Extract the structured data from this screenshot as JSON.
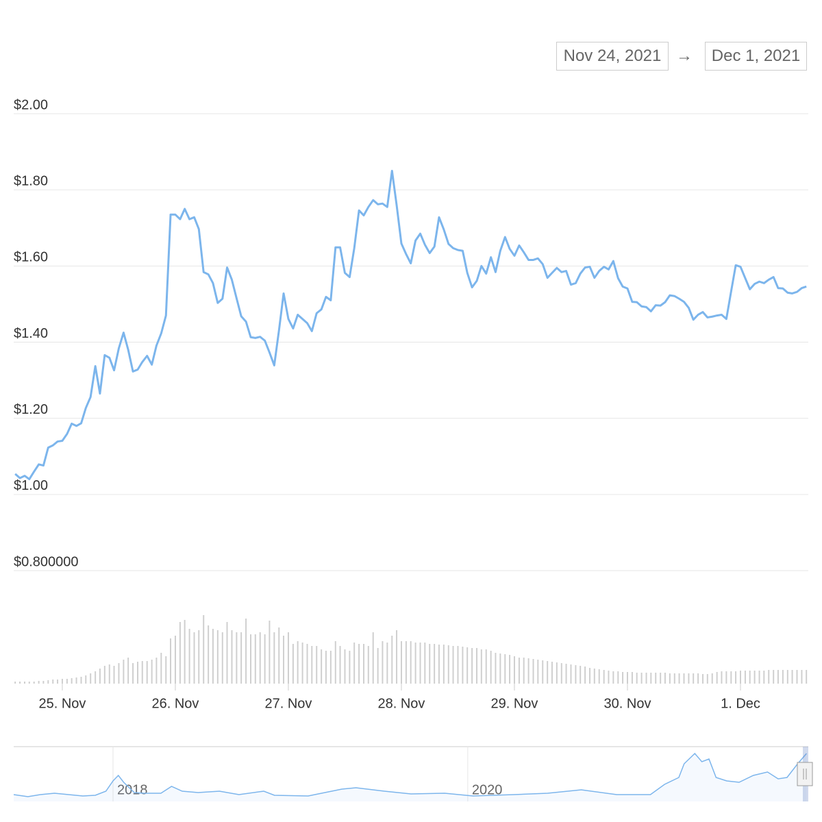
{
  "range_selector": {
    "from": "Nov 24, 2021",
    "separator": "→",
    "to": "Dec 1, 2021"
  },
  "chart_data": [
    {
      "type": "line",
      "x": [
        24.583,
        24.625,
        24.667,
        24.708,
        24.75,
        24.792,
        24.833,
        24.875,
        24.917,
        24.958,
        25,
        25.042,
        25.083,
        25.125,
        25.167,
        25.208,
        25.25,
        25.292,
        25.333,
        25.375,
        25.417,
        25.458,
        25.5,
        25.542,
        25.583,
        25.625,
        25.667,
        25.708,
        25.75,
        25.792,
        25.833,
        25.875,
        25.917,
        25.958,
        26,
        26.042,
        26.083,
        26.125,
        26.167,
        26.208,
        26.25,
        26.292,
        26.333,
        26.375,
        26.417,
        26.458,
        26.5,
        26.542,
        26.583,
        26.625,
        26.667,
        26.708,
        26.75,
        26.792,
        26.833,
        26.875,
        26.917,
        26.958,
        27,
        27.042,
        27.083,
        27.125,
        27.167,
        27.208,
        27.25,
        27.292,
        27.333,
        27.375,
        27.417,
        27.458,
        27.5,
        27.542,
        27.583,
        27.625,
        27.667,
        27.708,
        27.75,
        27.792,
        27.833,
        27.875,
        27.917,
        27.958,
        28,
        28.042,
        28.083,
        28.125,
        28.167,
        28.208,
        28.25,
        28.292,
        28.333,
        28.375,
        28.417,
        28.458,
        28.5,
        28.542,
        28.583,
        28.625,
        28.667,
        28.708,
        28.75,
        28.792,
        28.833,
        28.875,
        28.917,
        28.958,
        29,
        29.042,
        29.083,
        29.125,
        29.167,
        29.208,
        29.25,
        29.292,
        29.333,
        29.375,
        29.417,
        29.458,
        29.5,
        29.542,
        29.583,
        29.625,
        29.667,
        29.708,
        29.75,
        29.792,
        29.833,
        29.875,
        29.917,
        29.958,
        30,
        30.042,
        30.083,
        30.125,
        30.167,
        30.208,
        30.25,
        30.292,
        30.333,
        30.375,
        30.417,
        30.458,
        30.5,
        30.542,
        30.583,
        30.625,
        30.667,
        30.708,
        30.75,
        30.792,
        30.833,
        30.875,
        30.917,
        30.958,
        31,
        31.042,
        31.083,
        31.125,
        31.167,
        31.208,
        31.25,
        31.292,
        31.333,
        31.375,
        31.417,
        31.458,
        31.5,
        31.542,
        31.583
      ],
      "series": [
        {
          "color": "#7cb5ec",
          "values": [
            1.054,
            1.043,
            1.049,
            1.04,
            1.06,
            1.079,
            1.076,
            1.123,
            1.129,
            1.139,
            1.141,
            1.159,
            1.186,
            1.18,
            1.187,
            1.227,
            1.256,
            1.337,
            1.265,
            1.366,
            1.359,
            1.326,
            1.384,
            1.425,
            1.38,
            1.323,
            1.328,
            1.348,
            1.364,
            1.341,
            1.391,
            1.423,
            1.47,
            1.735,
            1.735,
            1.723,
            1.75,
            1.723,
            1.728,
            1.697,
            1.584,
            1.578,
            1.555,
            1.503,
            1.514,
            1.596,
            1.564,
            1.515,
            1.468,
            1.454,
            1.413,
            1.411,
            1.414,
            1.404,
            1.373,
            1.339,
            1.431,
            1.528,
            1.461,
            1.436,
            1.472,
            1.461,
            1.45,
            1.429,
            1.476,
            1.486,
            1.519,
            1.51,
            1.649,
            1.649,
            1.582,
            1.571,
            1.647,
            1.746,
            1.733,
            1.755,
            1.773,
            1.762,
            1.764,
            1.755,
            1.85,
            1.76,
            1.659,
            1.631,
            1.607,
            1.667,
            1.685,
            1.656,
            1.634,
            1.651,
            1.728,
            1.696,
            1.658,
            1.647,
            1.642,
            1.64,
            1.582,
            1.544,
            1.561,
            1.6,
            1.58,
            1.623,
            1.584,
            1.64,
            1.676,
            1.645,
            1.627,
            1.654,
            1.636,
            1.616,
            1.616,
            1.62,
            1.605,
            1.569,
            1.582,
            1.595,
            1.584,
            1.587,
            1.551,
            1.555,
            1.58,
            1.596,
            1.598,
            1.569,
            1.587,
            1.598,
            1.591,
            1.613,
            1.568,
            1.546,
            1.541,
            1.506,
            1.505,
            1.494,
            1.492,
            1.481,
            1.497,
            1.496,
            1.505,
            1.523,
            1.521,
            1.514,
            1.506,
            1.49,
            1.459,
            1.472,
            1.479,
            1.465,
            1.467,
            1.47,
            1.472,
            1.461,
            1.533,
            1.602,
            1.598,
            1.568,
            1.539,
            1.553,
            1.559,
            1.555,
            1.564,
            1.571,
            1.542,
            1.541,
            1.53,
            1.528,
            1.532,
            1.542,
            1.546
          ]
        },
        {
          "type": "bar",
          "axis": "y2",
          "color": "#cfcfcf",
          "values": [
            3,
            3,
            3,
            3,
            3,
            4,
            4,
            5,
            6,
            6,
            7,
            7,
            8,
            9,
            10,
            12,
            15,
            18,
            22,
            26,
            28,
            26,
            30,
            35,
            38,
            30,
            32,
            33,
            33,
            35,
            38,
            45,
            40,
            66,
            70,
            90,
            93,
            80,
            75,
            78,
            100,
            85,
            80,
            78,
            75,
            90,
            78,
            75,
            75,
            95,
            72,
            72,
            75,
            72,
            92,
            75,
            82,
            70,
            75,
            58,
            62,
            60,
            58,
            55,
            55,
            50,
            48,
            48,
            62,
            55,
            50,
            48,
            60,
            58,
            58,
            55,
            75,
            52,
            62,
            60,
            70,
            78,
            62,
            62,
            62,
            60,
            60,
            60,
            58,
            58,
            57,
            57,
            56,
            55,
            55,
            54,
            53,
            52,
            52,
            50,
            50,
            48,
            45,
            44,
            43,
            42,
            40,
            38,
            38,
            37,
            36,
            35,
            34,
            33,
            32,
            31,
            30,
            29,
            28,
            27,
            26,
            25,
            23,
            22,
            21,
            20,
            19,
            18,
            18,
            17,
            17,
            17,
            16,
            16,
            16,
            16,
            16,
            16,
            16,
            15,
            15,
            15,
            15,
            15,
            15,
            15,
            14,
            14,
            15,
            17,
            18,
            18,
            18,
            18,
            19,
            19,
            19,
            19,
            19,
            19,
            20,
            20,
            20,
            20,
            20,
            20,
            20,
            20,
            20
          ]
        }
      ],
      "xlim": [
        24.57,
        31.6
      ],
      "xticks": [
        {
          "value": 25,
          "label": "25. Nov"
        },
        {
          "value": 26,
          "label": "26. Nov"
        },
        {
          "value": 27,
          "label": "27. Nov"
        },
        {
          "value": 28,
          "label": "28. Nov"
        },
        {
          "value": 29,
          "label": "29. Nov"
        },
        {
          "value": 30,
          "label": "30. Nov"
        },
        {
          "value": 31,
          "label": "1. Dec"
        }
      ],
      "ylim": [
        0.8,
        2.0
      ],
      "yticks": [
        {
          "value": 2.0,
          "label": "$2.00"
        },
        {
          "value": 1.8,
          "label": "$1.80"
        },
        {
          "value": 1.6,
          "label": "$1.60"
        },
        {
          "value": 1.4,
          "label": "$1.40"
        },
        {
          "value": 1.2,
          "label": "$1.20"
        },
        {
          "value": 1.0,
          "label": "$1.00"
        },
        {
          "value": 0.8,
          "label": "$0.800000"
        }
      ],
      "y2lim": [
        0,
        100
      ],
      "grid": true
    },
    {
      "type": "area",
      "color": "#7cb5ec",
      "x": [
        2017.44,
        2017.52,
        2017.59,
        2017.67,
        2017.75,
        2017.83,
        2017.9,
        2017.96,
        2018.0,
        2018.03,
        2018.06,
        2018.12,
        2018.17,
        2018.27,
        2018.33,
        2018.39,
        2018.48,
        2018.6,
        2018.71,
        2018.85,
        2018.91,
        2019.1,
        2019.29,
        2019.37,
        2019.53,
        2019.68,
        2019.87,
        2020.03,
        2020.26,
        2020.45,
        2020.64,
        2020.84,
        2021.03,
        2021.11,
        2021.19,
        2021.22,
        2021.28,
        2021.32,
        2021.36,
        2021.4,
        2021.46,
        2021.53,
        2021.61,
        2021.69,
        2021.75,
        2021.8,
        2021.86,
        2021.91
      ],
      "values": [
        12.5,
        8.75,
        12.5,
        15,
        12.5,
        10,
        11.25,
        18.75,
        37.5,
        47.5,
        35,
        16.25,
        15,
        15,
        27.5,
        18.75,
        16.25,
        18.75,
        12.5,
        18.75,
        11.25,
        10,
        22.5,
        25,
        18.75,
        13.75,
        15,
        10,
        12.5,
        15,
        21.25,
        12.5,
        12.5,
        31.25,
        43.75,
        68.75,
        87.5,
        72.5,
        77.5,
        43.75,
        37.5,
        35,
        47.5,
        53.75,
        41.25,
        43.75,
        68.75,
        87.5
      ],
      "xlim": [
        2017.44,
        2021.92
      ],
      "xticks": [
        2018,
        2020
      ],
      "ylim": [
        0,
        100
      ],
      "grid": true
    }
  ]
}
